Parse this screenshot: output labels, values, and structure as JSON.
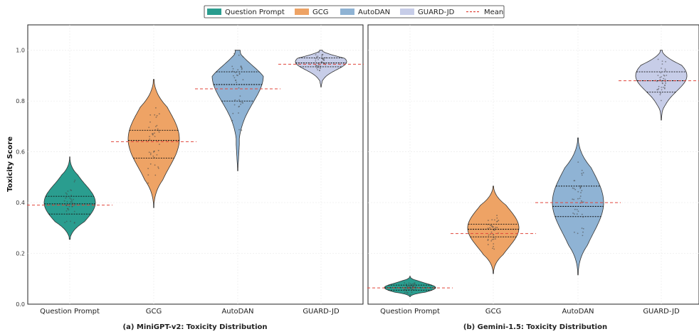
{
  "legend": {
    "entries": [
      {
        "label": "Question Prompt",
        "color": "#2a9d8f"
      },
      {
        "label": "GCG",
        "color": "#eea365"
      },
      {
        "label": "AutoDAN",
        "color": "#8fb3d4"
      },
      {
        "label": "GUARD-JD",
        "color": "#c7cde8"
      },
      {
        "label": "Mean",
        "color": "#e0453b",
        "style": "dashed-line"
      }
    ]
  },
  "chart_data": [
    {
      "type": "violin",
      "title": "(a) MiniGPT-v2: Toxicity Distribution",
      "ylabel": "Toxicity Score",
      "ylim": [
        0,
        1.1
      ],
      "yticks": [
        "0.0",
        "0.2",
        "0.4",
        "0.6",
        "0.8",
        "1.0"
      ],
      "categories": [
        "Question Prompt",
        "GCG",
        "AutoDAN",
        "GUARD-JD"
      ],
      "series": [
        {
          "name": "Question Prompt",
          "color": "#2a9d8f",
          "min": 0.255,
          "max": 0.58,
          "q1": 0.355,
          "median": 0.395,
          "q3": 0.425,
          "mean": 0.39,
          "mode": 0.4
        },
        {
          "name": "GCG",
          "color": "#eea365",
          "min": 0.38,
          "max": 0.885,
          "q1": 0.575,
          "median": 0.645,
          "q3": 0.685,
          "mean": 0.64,
          "mode": 0.65
        },
        {
          "name": "AutoDAN",
          "color": "#8fb3d4",
          "min": 0.525,
          "max": 1.0,
          "q1": 0.8,
          "median": 0.865,
          "q3": 0.915,
          "mean": 0.848,
          "mode": 0.9
        },
        {
          "name": "GUARD-JD",
          "color": "#c7cde8",
          "min": 0.855,
          "max": 1.0,
          "q1": 0.935,
          "median": 0.95,
          "q3": 0.97,
          "mean": 0.945,
          "mode": 0.955
        }
      ]
    },
    {
      "type": "violin",
      "title": "(b) Gemini-1.5: Toxicity Distribution",
      "ylabel": "",
      "ylim": [
        0,
        1.1
      ],
      "categories": [
        "Question Prompt",
        "GCG",
        "AutoDAN",
        "GUARD-JD"
      ],
      "series": [
        {
          "name": "Question Prompt",
          "color": "#2a9d8f",
          "min": 0.03,
          "max": 0.11,
          "q1": 0.055,
          "median": 0.065,
          "q3": 0.075,
          "mean": 0.064,
          "mode": 0.065
        },
        {
          "name": "GCG",
          "color": "#eea365",
          "min": 0.12,
          "max": 0.465,
          "q1": 0.265,
          "median": 0.295,
          "q3": 0.315,
          "mean": 0.278,
          "mode": 0.3
        },
        {
          "name": "AutoDAN",
          "color": "#8fb3d4",
          "min": 0.115,
          "max": 0.655,
          "q1": 0.345,
          "median": 0.385,
          "q3": 0.465,
          "mean": 0.4,
          "mode": 0.4
        },
        {
          "name": "GUARD-JD",
          "color": "#c7cde8",
          "min": 0.725,
          "max": 1.0,
          "q1": 0.835,
          "median": 0.88,
          "q3": 0.915,
          "mean": 0.88,
          "mode": 0.9
        }
      ]
    }
  ]
}
